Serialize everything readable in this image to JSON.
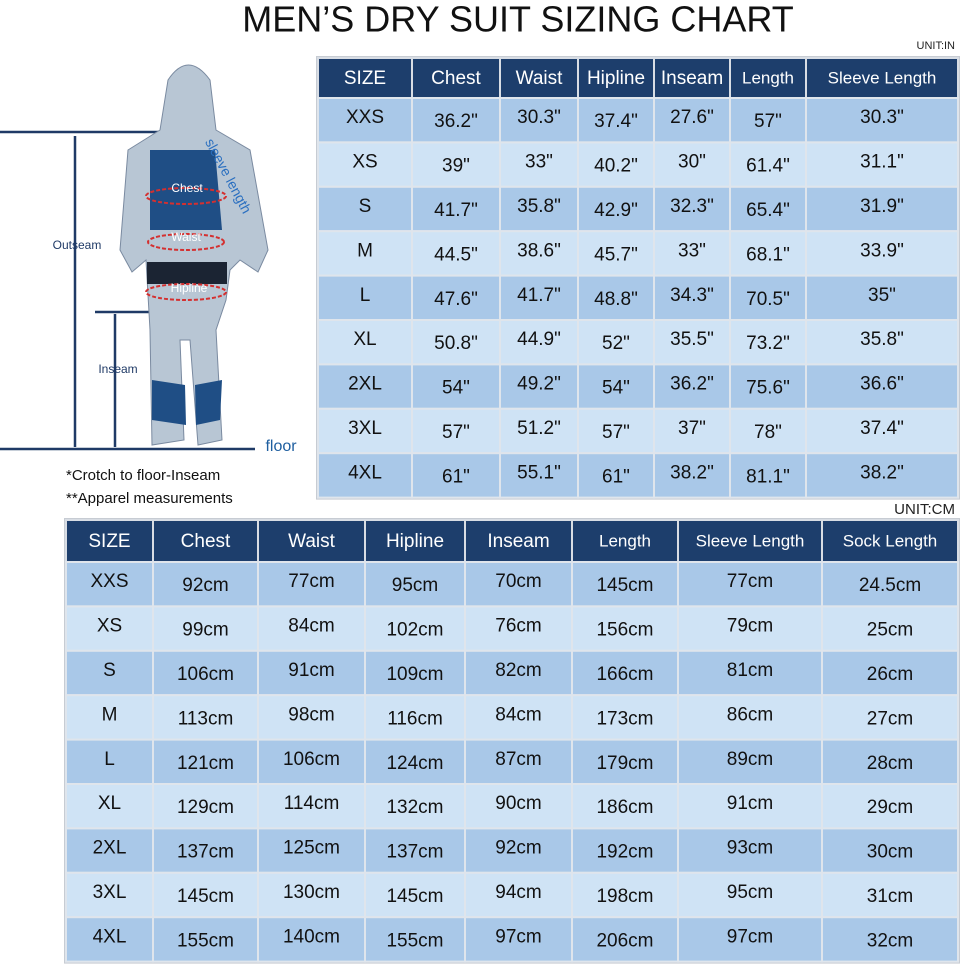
{
  "title": "MEN’S DRY SUIT SIZING CHART",
  "unit_in": "UNIT:IN",
  "unit_cm": "UNIT:CM",
  "figure": {
    "chest": "Chest",
    "waist": "Waist",
    "hipline": "Hipline",
    "outseam": "Outseam",
    "inseam": "Inseam",
    "floor": "floor",
    "sleeve": "sleeve length"
  },
  "notes": [
    "*Crotch to floor-Inseam",
    "**Apparel measurements"
  ],
  "table_in": {
    "header": [
      "SIZE",
      "Chest",
      "Waist",
      "Hipline",
      "Inseam",
      "Length",
      "Sleeve Length"
    ],
    "rows": [
      [
        "XXS",
        "36.2\"",
        "30.3\"",
        "37.4\"",
        "27.6\"",
        "57\"",
        "30.3\""
      ],
      [
        "XS",
        "39\"",
        "33\"",
        "40.2\"",
        "30\"",
        "61.4\"",
        "31.1\""
      ],
      [
        "S",
        "41.7\"",
        "35.8\"",
        "42.9\"",
        "32.3\"",
        "65.4\"",
        "31.9\""
      ],
      [
        "M",
        "44.5\"",
        "38.6\"",
        "45.7\"",
        "33\"",
        "68.1\"",
        "33.9\""
      ],
      [
        "L",
        "47.6\"",
        "41.7\"",
        "48.8\"",
        "34.3\"",
        "70.5\"",
        "35\""
      ],
      [
        "XL",
        "50.8\"",
        "44.9\"",
        "52\"",
        "35.5\"",
        "73.2\"",
        "35.8\""
      ],
      [
        "2XL",
        "54\"",
        "49.2\"",
        "54\"",
        "36.2\"",
        "75.6\"",
        "36.6\""
      ],
      [
        "3XL",
        "57\"",
        "51.2\"",
        "57\"",
        "37\"",
        "78\"",
        "37.4\""
      ],
      [
        "4XL",
        "61\"",
        "55.1\"",
        "61\"",
        "38.2\"",
        "81.1\"",
        "38.2\""
      ]
    ]
  },
  "table_cm": {
    "header": [
      "SIZE",
      "Chest",
      "Waist",
      "Hipline",
      "Inseam",
      "Length",
      "Sleeve Length",
      "Sock Length"
    ],
    "rows": [
      [
        "XXS",
        "92cm",
        "77cm",
        "95cm",
        "70cm",
        "145cm",
        "77cm",
        "24.5cm"
      ],
      [
        "XS",
        "99cm",
        "84cm",
        "102cm",
        "76cm",
        "156cm",
        "79cm",
        "25cm"
      ],
      [
        "S",
        "106cm",
        "91cm",
        "109cm",
        "82cm",
        "166cm",
        "81cm",
        "26cm"
      ],
      [
        "M",
        "113cm",
        "98cm",
        "116cm",
        "84cm",
        "173cm",
        "86cm",
        "27cm"
      ],
      [
        "L",
        "121cm",
        "106cm",
        "124cm",
        "87cm",
        "179cm",
        "89cm",
        "28cm"
      ],
      [
        "XL",
        "129cm",
        "114cm",
        "132cm",
        "90cm",
        "186cm",
        "91cm",
        "29cm"
      ],
      [
        "2XL",
        "137cm",
        "125cm",
        "137cm",
        "92cm",
        "192cm",
        "93cm",
        "30cm"
      ],
      [
        "3XL",
        "145cm",
        "130cm",
        "145cm",
        "94cm",
        "198cm",
        "95cm",
        "31cm"
      ],
      [
        "4XL",
        "155cm",
        "140cm",
        "155cm",
        "97cm",
        "206cm",
        "97cm",
        "32cm"
      ]
    ]
  }
}
